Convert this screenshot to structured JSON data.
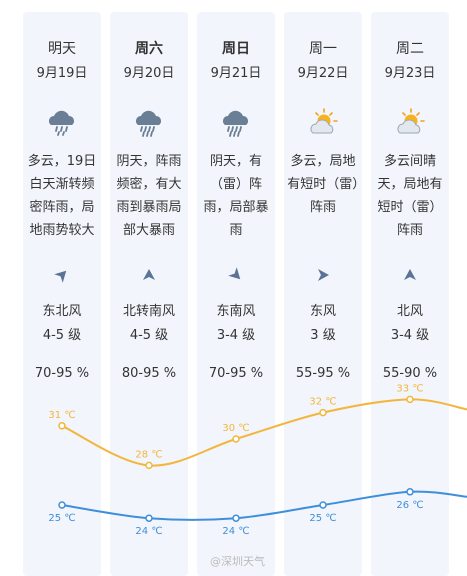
{
  "days": [
    {
      "day": "明天",
      "bold": false,
      "date": "9月19日",
      "icon": "heavy-rain-icon",
      "desc": "多云，19日白天渐转频密阵雨，局地雨势较大",
      "arrow": "northeast-wind-arrow-icon",
      "wind": "东北风",
      "level": "4-5 级",
      "humidity": "70-95 %"
    },
    {
      "day": "周六",
      "bold": true,
      "date": "9月20日",
      "icon": "rainstorm-icon",
      "desc": "阴天，阵雨频密，有大雨到暴雨局部大暴雨",
      "arrow": "north-wind-arrow-icon",
      "wind": "北转南风",
      "level": "4-5 级",
      "humidity": "80-95 %"
    },
    {
      "day": "周日",
      "bold": true,
      "date": "9月21日",
      "icon": "rainstorm-icon",
      "desc": "阴天，有（雷）阵雨，局部暴雨",
      "arrow": "southeast-wind-arrow-icon",
      "wind": "东南风",
      "level": "3-4 级",
      "humidity": "70-95 %"
    },
    {
      "day": "周一",
      "bold": false,
      "date": "9月22日",
      "icon": "sun-cloud-icon",
      "desc": "多云，局地有短时（雷）阵雨",
      "arrow": "east-wind-arrow-icon",
      "wind": "东风",
      "level": "3 级",
      "humidity": "55-95 %"
    },
    {
      "day": "周二",
      "bold": false,
      "date": "9月23日",
      "icon": "sun-cloud-icon",
      "desc": "多云间晴天，局地有短时（雷）阵雨",
      "arrow": "north-wind-arrow-icon",
      "wind": "北风",
      "level": "3-4 级",
      "humidity": "55-90 %"
    }
  ],
  "chart_data": {
    "type": "line",
    "x": [
      "9月19日",
      "9月20日",
      "9月21日",
      "9月22日",
      "9月23日"
    ],
    "series": [
      {
        "values": [
          31,
          28,
          30,
          32,
          33
        ],
        "labels": [
          "31 ℃",
          "28 ℃",
          "30 ℃",
          "32 ℃",
          "33 ℃"
        ],
        "color": "#f3b63b"
      },
      {
        "values": [
          25,
          24,
          24,
          25,
          26
        ],
        "labels": [
          "25 ℃",
          "24 ℃",
          "24 ℃",
          "25 ℃",
          "26 ℃"
        ],
        "color": "#3d8fdc"
      }
    ]
  },
  "watermark": "@深圳天气",
  "colors": {
    "column_bg": "#f2f5fb",
    "icon_gray": "#6a7f96",
    "arrow": "#5b7394"
  }
}
